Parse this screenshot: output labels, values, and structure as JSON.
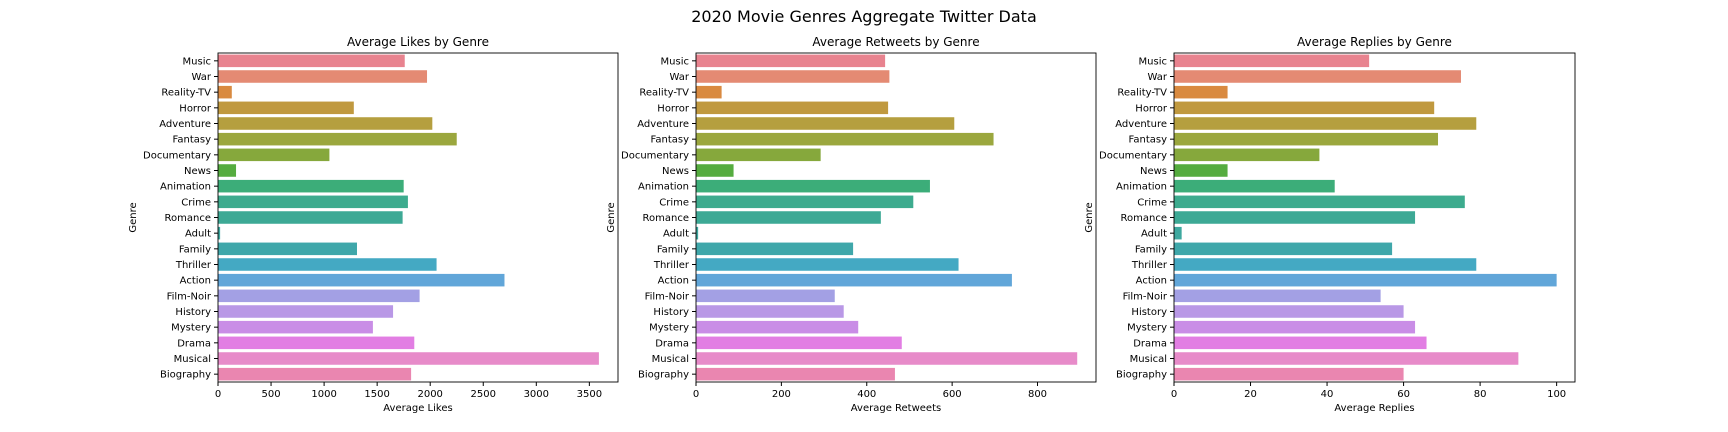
{
  "figure": {
    "title": "2020 Movie Genres Aggregate Twitter Data"
  },
  "colors": [
    "#e8838f",
    "#e48a73",
    "#d98a40",
    "#c0993f",
    "#b59f3f",
    "#9ba73e",
    "#86a83c",
    "#55ac3f",
    "#3cad79",
    "#3dab8e",
    "#3da995",
    "#3ea89f",
    "#3fa7aa",
    "#44a9c3",
    "#61a6d9",
    "#a3a0e4",
    "#b998e6",
    "#c98de6",
    "#e27ee3",
    "#e78bc9",
    "#ea86b0"
  ],
  "chart_data": [
    {
      "type": "bar",
      "orientation": "horizontal",
      "title": "Average Likes by Genre",
      "xlabel": "Average Likes",
      "ylabel": "Genre",
      "xlim": [
        0,
        3770
      ],
      "xticks": [
        0,
        500,
        1000,
        1500,
        2000,
        2500,
        3000,
        3500
      ],
      "categories": [
        "Music",
        "War",
        "Reality-TV",
        "Horror",
        "Adventure",
        "Fantasy",
        "Documentary",
        "News",
        "Animation",
        "Crime",
        "Romance",
        "Adult",
        "Family",
        "Thriller",
        "Action",
        "Film-Noir",
        "History",
        "Mystery",
        "Drama",
        "Musical",
        "Biography"
      ],
      "values": [
        1760,
        1970,
        130,
        1280,
        2020,
        2250,
        1050,
        170,
        1750,
        1790,
        1740,
        20,
        1310,
        2060,
        2700,
        1900,
        1650,
        1460,
        1850,
        3590,
        1820
      ]
    },
    {
      "type": "bar",
      "orientation": "horizontal",
      "title": "Average Retweets by Genre",
      "xlabel": "Average Retweets",
      "ylabel": "Genre",
      "xlim": [
        0,
        937
      ],
      "xticks": [
        0,
        200,
        400,
        600,
        800
      ],
      "categories": [
        "Music",
        "War",
        "Reality-TV",
        "Horror",
        "Adventure",
        "Fantasy",
        "Documentary",
        "News",
        "Animation",
        "Crime",
        "Romance",
        "Adult",
        "Family",
        "Thriller",
        "Action",
        "Film-Noir",
        "History",
        "Mystery",
        "Drama",
        "Musical",
        "Biography"
      ],
      "values": [
        443,
        453,
        60,
        450,
        605,
        697,
        292,
        88,
        548,
        509,
        433,
        5,
        368,
        615,
        740,
        325,
        346,
        380,
        482,
        893,
        466
      ]
    },
    {
      "type": "bar",
      "orientation": "horizontal",
      "title": "Average Replies by Genre",
      "xlabel": "Average Replies",
      "ylabel": "Genre",
      "xlim": [
        0,
        104.8
      ],
      "xticks": [
        0,
        20,
        40,
        60,
        80,
        100
      ],
      "categories": [
        "Music",
        "War",
        "Reality-TV",
        "Horror",
        "Adventure",
        "Fantasy",
        "Documentary",
        "News",
        "Animation",
        "Crime",
        "Romance",
        "Adult",
        "Family",
        "Thriller",
        "Action",
        "Film-Noir",
        "History",
        "Mystery",
        "Drama",
        "Musical",
        "Biography"
      ],
      "values": [
        51,
        75,
        14,
        68,
        79,
        69,
        38,
        14,
        42,
        76,
        63,
        2,
        57,
        79,
        100,
        54,
        60,
        63,
        66,
        90,
        60
      ]
    }
  ]
}
